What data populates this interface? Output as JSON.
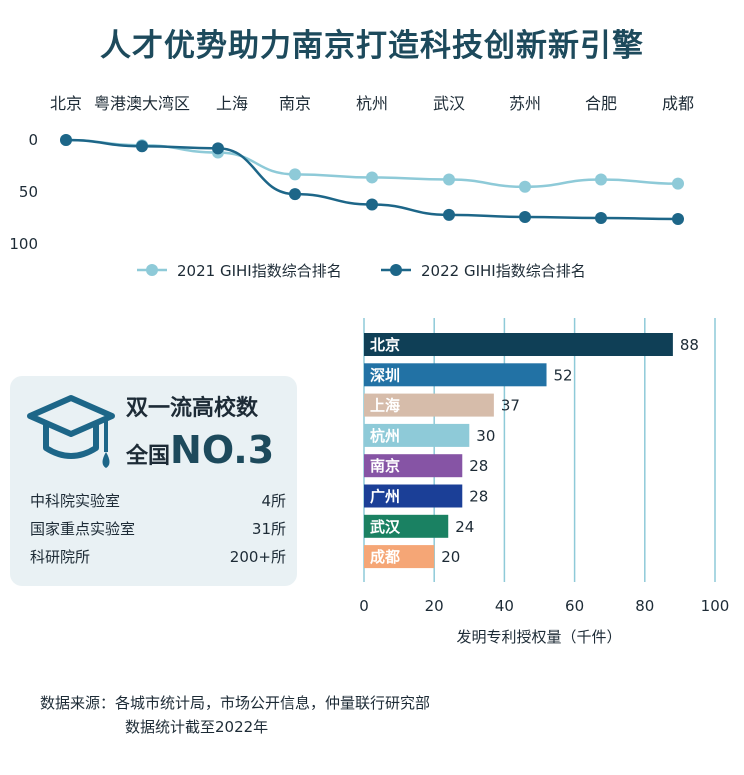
{
  "title": "人才优势助力南京打造科技创新新引擎",
  "chart_data": [
    {
      "type": "line",
      "categories": [
        "北京",
        "粤港澳大湾区",
        "上海",
        "南京",
        "杭州",
        "武汉",
        "苏州",
        "合肥",
        "成都"
      ],
      "y_axis": {
        "ticks": [
          "0",
          "50",
          "100"
        ],
        "range": [
          0,
          100
        ],
        "inverted": true
      },
      "series": [
        {
          "name": "2021 GIHI指数综合排名",
          "color": "#8ecad8",
          "values": [
            0,
            5,
            12,
            33,
            36,
            38,
            45,
            38,
            42
          ]
        },
        {
          "name": "2022 GIHI指数综合排名",
          "color": "#1d6688",
          "values": [
            0,
            6,
            8,
            52,
            62,
            72,
            74,
            75,
            76
          ]
        }
      ],
      "legend_position": "bottom"
    },
    {
      "type": "bar",
      "orientation": "horizontal",
      "categories": [
        "北京",
        "深圳",
        "上海",
        "杭州",
        "南京",
        "广州",
        "武汉",
        "成都"
      ],
      "values": [
        88,
        52,
        37,
        30,
        28,
        28,
        24,
        20
      ],
      "colors": [
        "#0f3f56",
        "#2272a5",
        "#d6bcaa",
        "#8ecad8",
        "#8654a5",
        "#1b3f97",
        "#1a8162",
        "#f5a676"
      ],
      "x_axis": {
        "ticks": [
          "0",
          "20",
          "40",
          "60",
          "80",
          "100"
        ],
        "range": [
          0,
          100
        ]
      },
      "xlabel": "发明专利授权量（千件）",
      "grid": true
    }
  ],
  "card": {
    "icon": "graduation-cap-icon",
    "title": "双一流高校数",
    "sub_prefix": "全国",
    "sub_value": "NO.3",
    "rows": [
      {
        "label": "中科院实验室",
        "value": "4所"
      },
      {
        "label": "国家重点实验室",
        "value": "31所"
      },
      {
        "label": "科研院所",
        "value": "200+所"
      }
    ]
  },
  "source": {
    "line1": "数据来源：各城市统计局，市场公开信息，仲量联行研究部",
    "line2": "数据统计截至2022年"
  }
}
